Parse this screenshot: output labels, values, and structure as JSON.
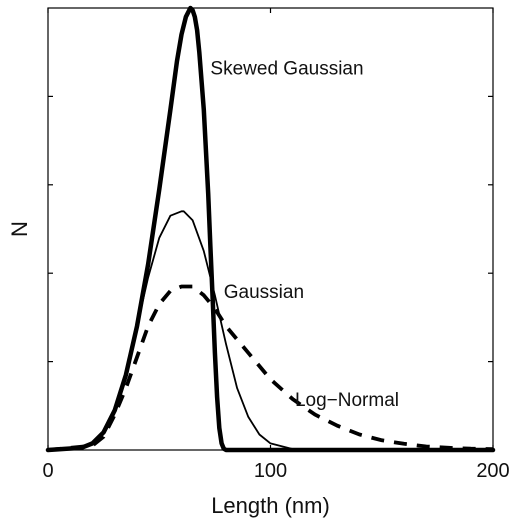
{
  "chart_data": {
    "type": "line",
    "title": "",
    "xlabel": "Length (nm)",
    "ylabel": "N",
    "xlim": [
      0,
      200
    ],
    "ylim": [
      0,
      1
    ],
    "x_ticks": [
      0,
      100,
      200
    ],
    "x_tick_labels": [
      "0",
      "100",
      "200"
    ],
    "y_ticks": [
      0.2,
      0.4,
      0.6,
      0.8
    ],
    "y_tick_labels_visible": false,
    "grid": false,
    "legend": "none",
    "series": [
      {
        "name": "Skewed Gaussian",
        "style": "thick-solid",
        "x": [
          0,
          15,
          20,
          25,
          30,
          35,
          40,
          45,
          50,
          55,
          58,
          60,
          62,
          64,
          65,
          66,
          67,
          68,
          70,
          72,
          73,
          74,
          75,
          76,
          77,
          78,
          79,
          80,
          90,
          100,
          150,
          200
        ],
        "y": [
          0,
          0.005,
          0.015,
          0.04,
          0.09,
          0.17,
          0.28,
          0.42,
          0.59,
          0.77,
          0.88,
          0.94,
          0.98,
          1.0,
          0.995,
          0.98,
          0.95,
          0.9,
          0.77,
          0.58,
          0.46,
          0.34,
          0.22,
          0.12,
          0.05,
          0.015,
          0.003,
          0,
          0,
          0,
          0,
          0
        ]
      },
      {
        "name": "Gaussian",
        "style": "thin-solid",
        "x": [
          0,
          10,
          20,
          25,
          30,
          35,
          40,
          45,
          50,
          55,
          60,
          61,
          65,
          70,
          75,
          80,
          85,
          90,
          95,
          100,
          110,
          120,
          200
        ],
        "y": [
          0,
          0.002,
          0.015,
          0.04,
          0.09,
          0.17,
          0.28,
          0.39,
          0.48,
          0.53,
          0.54,
          0.54,
          0.52,
          0.45,
          0.35,
          0.24,
          0.14,
          0.075,
          0.035,
          0.015,
          0.002,
          0,
          0
        ]
      },
      {
        "name": "Log-Normal",
        "style": "thick-dashed",
        "x": [
          0,
          20,
          25,
          30,
          35,
          40,
          45,
          50,
          55,
          60,
          65,
          70,
          75,
          80,
          85,
          90,
          100,
          110,
          120,
          130,
          140,
          150,
          160,
          170,
          180,
          190,
          200
        ],
        "y": [
          0,
          0.01,
          0.03,
          0.08,
          0.14,
          0.21,
          0.28,
          0.33,
          0.36,
          0.37,
          0.37,
          0.35,
          0.32,
          0.28,
          0.25,
          0.22,
          0.16,
          0.115,
          0.08,
          0.055,
          0.035,
          0.022,
          0.014,
          0.008,
          0.005,
          0.003,
          0.002
        ]
      }
    ],
    "annotations": [
      {
        "text": "Skewed Gaussian",
        "x": 73,
        "y": 0.865
      },
      {
        "text": "Gaussian",
        "x": 79,
        "y": 0.36
      },
      {
        "text": "Log−Normal",
        "x": 111,
        "y": 0.115
      }
    ]
  }
}
